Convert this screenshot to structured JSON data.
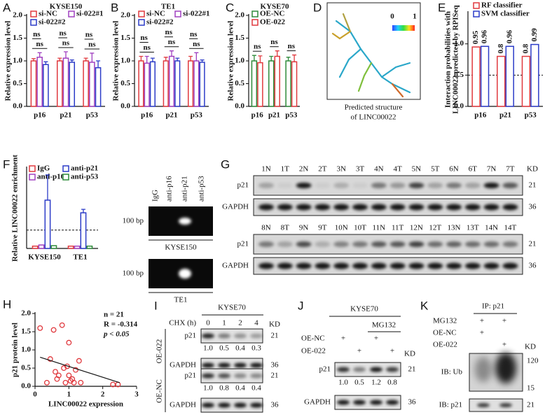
{
  "chart_data": [
    {
      "type": "bar",
      "label": "A",
      "title": "KYSE150",
      "y_label": "Relative expression level",
      "categories": [
        "p16",
        "p21",
        "p53"
      ],
      "series": [
        {
          "name": "si-NC",
          "color": "#e0393e",
          "values": [
            1.0,
            1.0,
            1.0
          ],
          "errors": [
            0.05,
            0.06,
            0.06
          ]
        },
        {
          "name": "si-022#1",
          "color": "#a040c0",
          "values": [
            1.08,
            1.06,
            0.97
          ],
          "errors": [
            0.1,
            0.14,
            0.2
          ]
        },
        {
          "name": "si-022#2",
          "color": "#2c3cc8",
          "values": [
            0.92,
            0.97,
            0.85
          ],
          "errors": [
            0.06,
            0.05,
            0.15
          ]
        }
      ],
      "significance": [
        [
          "ns",
          "ns"
        ],
        [
          "ns",
          "ns"
        ],
        [
          "ns",
          "ns"
        ]
      ],
      "ylim": [
        0,
        2
      ],
      "yticks": [
        {
          "value": 0,
          "label": "0.0"
        },
        0.5,
        {
          "value": 1,
          "label": "1.0"
        },
        1.5,
        {
          "value": 2,
          "label": "2.0"
        }
      ]
    },
    {
      "type": "bar",
      "label": "B",
      "title": "TE1",
      "y_label": "Relative expression level",
      "categories": [
        "p16",
        "p21",
        "p53"
      ],
      "series": [
        {
          "name": "si-NC",
          "color": "#e0393e",
          "values": [
            1.0,
            1.0,
            1.0
          ],
          "errors": [
            0.1,
            0.08,
            0.1
          ]
        },
        {
          "name": "si-022#1",
          "color": "#a040c0",
          "values": [
            0.95,
            1.1,
            1.0
          ],
          "errors": [
            0.15,
            0.12,
            0.18
          ]
        },
        {
          "name": "si-022#2",
          "color": "#2c3cc8",
          "values": [
            0.98,
            1.0,
            0.97
          ],
          "errors": [
            0.08,
            0.06,
            0.05
          ]
        }
      ],
      "significance": [
        [
          "ns",
          "ns"
        ],
        [
          "ns",
          "ns"
        ],
        [
          "ns",
          "ns"
        ]
      ],
      "ylim": [
        0,
        2
      ],
      "yticks": [
        {
          "value": 0,
          "label": "0.0"
        },
        0.5,
        {
          "value": 1,
          "label": "1.0"
        },
        1.5,
        {
          "value": 2,
          "label": "2.0"
        }
      ]
    },
    {
      "type": "bar",
      "label": "C",
      "title": "KYSE70",
      "y_label": "Relative expression level",
      "categories": [
        "p16",
        "p21",
        "p53"
      ],
      "series": [
        {
          "name": "OE-NC",
          "color": "#2e8b3a",
          "values": [
            1.0,
            1.0,
            1.0
          ],
          "errors": [
            0.12,
            0.1,
            0.08
          ]
        },
        {
          "name": "OE-022",
          "color": "#e0393e",
          "values": [
            0.96,
            1.1,
            0.98
          ],
          "errors": [
            0.15,
            0.12,
            0.15
          ]
        }
      ],
      "significance": [
        [
          "ns"
        ],
        [
          "ns"
        ],
        [
          "ns"
        ]
      ],
      "ylim": [
        0,
        2
      ],
      "yticks": [
        {
          "value": 0,
          "label": "0.0"
        },
        0.5,
        {
          "value": 1,
          "label": "1.0"
        },
        1.5,
        {
          "value": 2,
          "label": "2.0"
        }
      ]
    },
    {
      "type": "bar",
      "label": "E",
      "y_label": [
        "Interaction probabilities with",
        "LINC00022 predicted by RPISeq"
      ],
      "categories": [
        "p16",
        "p21",
        "p53"
      ],
      "series": [
        {
          "name": "RF classifier",
          "color": "#e0393e",
          "values": [
            0.95,
            0.8,
            0.8
          ],
          "value_labels": [
            "0.95",
            "0.8",
            "0.8"
          ]
        },
        {
          "name": "SVM classifier",
          "color": "#2c3cc8",
          "values": [
            0.96,
            0.96,
            0.99
          ],
          "value_labels": [
            "0.96",
            "0.96",
            "0.99"
          ]
        }
      ],
      "reference_line": 0.5,
      "ylim": [
        0,
        1.5
      ],
      "yticks": [
        {
          "value": 0,
          "label": "0.0"
        },
        0.5,
        {
          "value": 1,
          "label": "1.0"
        }
      ]
    },
    {
      "type": "bar",
      "label": "F",
      "y_label": "Relative LINC00022 enrichment",
      "categories": [
        "KYSE150",
        "TE1"
      ],
      "series": [
        {
          "name": "IgG",
          "color": "#e0393e",
          "values": [
            1.0,
            1.0
          ]
        },
        {
          "name": "anti-p16",
          "color": "#a040c0",
          "values": [
            1.5,
            1.0
          ]
        },
        {
          "name": "anti-p21",
          "color": "#2c3cc8",
          "values": [
            21,
            15.5
          ],
          "errors": [
            11,
            1.5
          ]
        },
        {
          "name": "anti-p53",
          "color": "#2e8b3a",
          "values": [
            1.2,
            1.0
          ]
        }
      ],
      "reference_line": 8,
      "ylim": [
        0,
        35
      ]
    },
    {
      "type": "scatter",
      "label": "H",
      "y_label": "p21 protein level",
      "x_label": "LINC00022 expression",
      "x": [
        0.15,
        0.35,
        0.45,
        0.55,
        0.6,
        0.65,
        0.7,
        0.8,
        0.85,
        0.9,
        0.95,
        1.0,
        1.0,
        1.05,
        1.1,
        1.15,
        1.2,
        1.3,
        1.35,
        2.3,
        2.45
      ],
      "values": [
        1.6,
        0.1,
        0.75,
        1.55,
        0.4,
        0.2,
        0.3,
        1.68,
        0.5,
        0.1,
        0.55,
        1.2,
        0.3,
        0.15,
        0.2,
        0.1,
        0.45,
        0.7,
        0.1,
        0.05,
        0.05
      ],
      "color": "#e0393e",
      "fit": {
        "x": [
          0.15,
          2.5
        ],
        "values": [
          0.8,
          0.1
        ]
      },
      "stats": [
        "n = 21",
        "R = -0.314",
        "p < 0.05"
      ],
      "xlim": [
        0,
        3
      ],
      "xticks": [
        0,
        1,
        2,
        3
      ],
      "ylim": [
        0,
        2
      ],
      "yticks": [
        {
          "value": 0,
          "label": "0.0"
        },
        0.5,
        {
          "value": 1,
          "label": "1.0"
        },
        1.5,
        {
          "value": 2,
          "label": "2.0"
        }
      ]
    }
  ],
  "panels": {
    "D": {
      "label": "D",
      "scale": [
        "0",
        "1"
      ],
      "caption": [
        "Predicted structure",
        "of LINC00022"
      ]
    },
    "F_gel": {
      "lanes": [
        "IgG",
        "anti-p16",
        "anti-p21",
        "anti-p53"
      ],
      "gels": [
        {
          "marker": "100 bp",
          "cell_line": "KYSE150"
        },
        {
          "marker": "100 bp",
          "cell_line": "TE1"
        }
      ]
    },
    "G": {
      "label": "G",
      "kd_header": "KD",
      "rows": [
        {
          "lanes": [
            "1N",
            "1T",
            "2N",
            "2T",
            "3N",
            "3T",
            "4N",
            "4T",
            "5N",
            "5T",
            "6N",
            "6T",
            "7N",
            "7T"
          ],
          "blots": [
            {
              "name": "p21",
              "kd": "21"
            },
            {
              "name": "GAPDH",
              "kd": "36"
            }
          ]
        },
        {
          "lanes": [
            "8N",
            "8T",
            "9N",
            "9T",
            "10N",
            "10T",
            "11N",
            "11T",
            "12N",
            "12T",
            "13N",
            "13T",
            "14N",
            "14T"
          ],
          "blots": [
            {
              "name": "p21",
              "kd": "21"
            },
            {
              "name": "GAPDH",
              "kd": "36"
            }
          ]
        }
      ]
    },
    "I": {
      "label": "I",
      "cell_line": "KYSE70",
      "treatment": "CHX (h)",
      "timepoints": [
        "0",
        "1",
        "2",
        "4"
      ],
      "kd_header": "KD",
      "groups": [
        {
          "name": "OE-022",
          "blots": [
            {
              "name": "p21",
              "kd": "21",
              "quant": [
                "1.0",
                "0.5",
                "0.4",
                "0.3"
              ]
            },
            {
              "name": "GAPDH",
              "kd": "36"
            }
          ]
        },
        {
          "name": "OE-NC",
          "blots": [
            {
              "name": "p21",
              "kd": "21",
              "quant": [
                "1.0",
                "0.8",
                "0.4",
                "0.4"
              ]
            },
            {
              "name": "GAPDH",
              "kd": "36"
            }
          ]
        }
      ]
    },
    "J": {
      "label": "J",
      "cell_line": "KYSE70",
      "treatment": "MG132",
      "kd_header": "KD",
      "conditions": [
        {
          "name": "OE-NC",
          "marks": [
            "+",
            "+"
          ]
        },
        {
          "name": "OE-022",
          "marks": [
            "+",
            "+"
          ]
        }
      ],
      "blots": [
        {
          "name": "p21",
          "kd": "21",
          "quant": [
            "1.0",
            "0.5",
            "1.2",
            "0.8"
          ]
        },
        {
          "name": "GAPDH",
          "kd": "36"
        }
      ]
    },
    "K": {
      "label": "K",
      "title": "IP: p21",
      "kd_header": "KD",
      "conditions": [
        {
          "name": "MG132",
          "marks": [
            "+",
            "+"
          ]
        },
        {
          "name": "OE-NC",
          "marks": [
            "+"
          ]
        },
        {
          "name": "OE-022",
          "marks": [
            "+"
          ]
        }
      ],
      "blots": [
        {
          "name": "IB: Ub",
          "markers": [
            "120",
            "15"
          ]
        },
        {
          "name": "IB: p21",
          "markers": [
            "21"
          ]
        }
      ]
    }
  }
}
